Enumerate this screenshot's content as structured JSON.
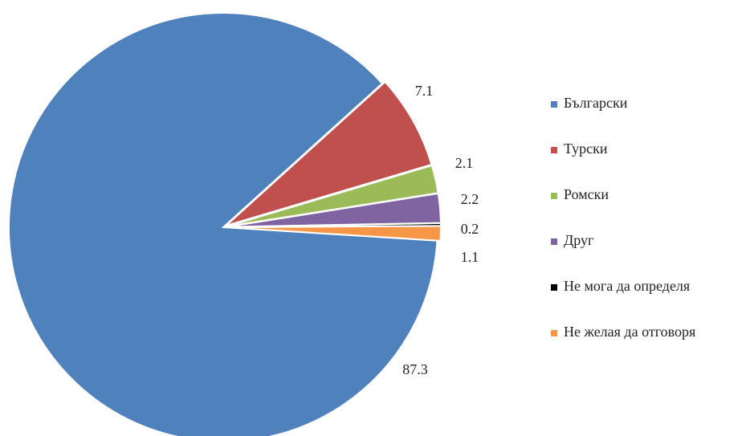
{
  "chart_data": {
    "type": "pie",
    "categories": [
      "Български",
      "Турски",
      "Ромски",
      "Друг",
      "Не мога да определя",
      "Не желая да отговоря"
    ],
    "values": [
      87.3,
      7.1,
      2.1,
      2.2,
      0.2,
      1.1
    ],
    "colors": [
      "#4f81bd",
      "#c0504d",
      "#9bbb59",
      "#8064a2",
      "#000000",
      "#f79646"
    ],
    "legend": "right"
  }
}
